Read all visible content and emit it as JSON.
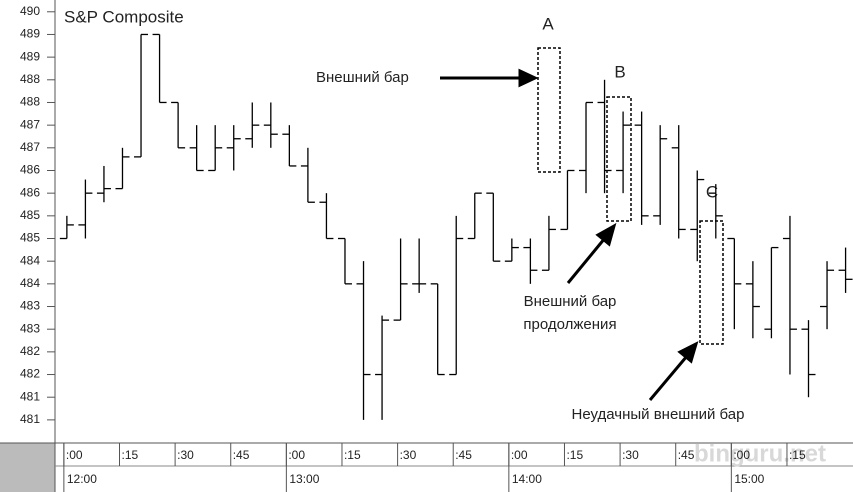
{
  "chart_data": {
    "type": "ohlc",
    "title": "S&P Composite",
    "x": [
      0,
      5,
      10,
      15,
      20,
      25,
      30,
      35,
      40,
      45,
      50,
      55,
      60,
      65,
      70,
      75,
      80,
      85,
      90,
      95,
      100,
      105,
      110,
      115,
      120,
      125,
      130,
      135,
      140,
      145,
      150,
      155,
      160,
      165,
      170,
      175,
      180,
      185,
      190,
      195,
      200,
      205,
      210
    ],
    "open": [
      485.0,
      485.3,
      486.0,
      486.1,
      486.8,
      489.5,
      488.0,
      487.0,
      486.5,
      487.0,
      487.2,
      487.5,
      487.3,
      486.6,
      485.8,
      485.0,
      484.0,
      482.0,
      483.2,
      484.0,
      484.0,
      482.0,
      485.0,
      486.0,
      484.5,
      484.8,
      484.3,
      485.2,
      486.5,
      488.0,
      486.5,
      487.5,
      485.5,
      487.0,
      485.2,
      486.0,
      485.0,
      484.0,
      483.0,
      485.0,
      483.0,
      483.5,
      484.3
    ],
    "high": [
      485.5,
      486.3,
      486.6,
      487.0,
      489.5,
      489.5,
      488.0,
      487.5,
      487.5,
      487.5,
      488.0,
      488.0,
      487.5,
      487.0,
      486.0,
      485.0,
      484.5,
      483.3,
      485.0,
      485.0,
      484.0,
      485.5,
      486.0,
      486.0,
      485.0,
      485.0,
      485.5,
      486.5,
      488.0,
      488.5,
      487.8,
      487.8,
      487.5,
      487.5,
      486.5,
      486.2,
      485.0,
      484.5,
      484.8,
      485.5,
      483.2,
      484.5,
      484.8
    ],
    "low": [
      485.0,
      485.0,
      485.8,
      486.1,
      486.8,
      488.0,
      487.0,
      486.5,
      486.5,
      486.5,
      487.0,
      487.0,
      486.6,
      485.8,
      485.0,
      484.0,
      481.0,
      481.0,
      483.2,
      483.8,
      482.0,
      482.0,
      485.0,
      484.5,
      484.5,
      484.0,
      484.3,
      485.2,
      486.0,
      486.0,
      486.0,
      485.3,
      485.3,
      485.0,
      484.5,
      485.0,
      483.0,
      482.8,
      482.8,
      482.0,
      481.5,
      483.0,
      483.8
    ],
    "close": [
      485.3,
      486.0,
      486.1,
      486.8,
      489.5,
      488.0,
      487.0,
      486.5,
      487.0,
      487.2,
      487.5,
      487.3,
      486.6,
      485.8,
      485.0,
      484.0,
      482.0,
      483.2,
      484.0,
      484.0,
      482.0,
      485.0,
      486.0,
      484.5,
      484.8,
      484.3,
      485.2,
      486.5,
      488.0,
      486.5,
      487.5,
      485.5,
      487.2,
      485.2,
      486.3,
      485.5,
      484.0,
      483.5,
      484.8,
      483.0,
      482.0,
      484.3,
      484.1
    ],
    "color": "#000000",
    "xlim": [
      -3.2,
      212
    ],
    "xticks": [
      {
        "value": 0,
        "label": ":00"
      },
      {
        "value": 15,
        "label": ":15"
      },
      {
        "value": 30,
        "label": ":30"
      },
      {
        "value": 45,
        "label": ":45"
      },
      {
        "value": 60,
        "label": ":00"
      },
      {
        "value": 75,
        "label": ":15"
      },
      {
        "value": 90,
        "label": ":30"
      },
      {
        "value": 105,
        "label": ":45"
      },
      {
        "value": 120,
        "label": ":00"
      },
      {
        "value": 135,
        "label": ":15"
      },
      {
        "value": 150,
        "label": ":30"
      },
      {
        "value": 165,
        "label": ":45"
      },
      {
        "value": 180,
        "label": ":00"
      },
      {
        "value": 195,
        "label": ":15"
      }
    ],
    "hour_labels": [
      {
        "value": 0,
        "label": "12:00"
      },
      {
        "value": 60,
        "label": "13:00"
      },
      {
        "value": 120,
        "label": "14:00"
      },
      {
        "value": 180,
        "label": "15:00"
      }
    ],
    "ylim": [
      480.49,
      490.26
    ],
    "yticks": [
      490,
      {
        "value": 489.5,
        "label": "489"
      },
      489,
      {
        "value": 488.5,
        "label": "488"
      },
      488,
      {
        "value": 487.5,
        "label": "487"
      },
      487,
      {
        "value": 486.5,
        "label": "486"
      },
      486,
      {
        "value": 485.5,
        "label": "485"
      },
      485,
      {
        "value": 484.5,
        "label": "484"
      },
      484,
      {
        "value": 483.5,
        "label": "483"
      },
      483,
      {
        "value": 482.5,
        "label": "482"
      },
      482,
      {
        "value": 481.5,
        "label": "481"
      },
      481
    ],
    "annotations": {
      "a": "A",
      "b": "B",
      "c": "C",
      "outside_bar": "Внешний бар",
      "continuation_1": "Внешний бар",
      "continuation_2": "продолжения",
      "failed": "Неудачный внешний бар"
    },
    "watermark": "binguru.net"
  }
}
